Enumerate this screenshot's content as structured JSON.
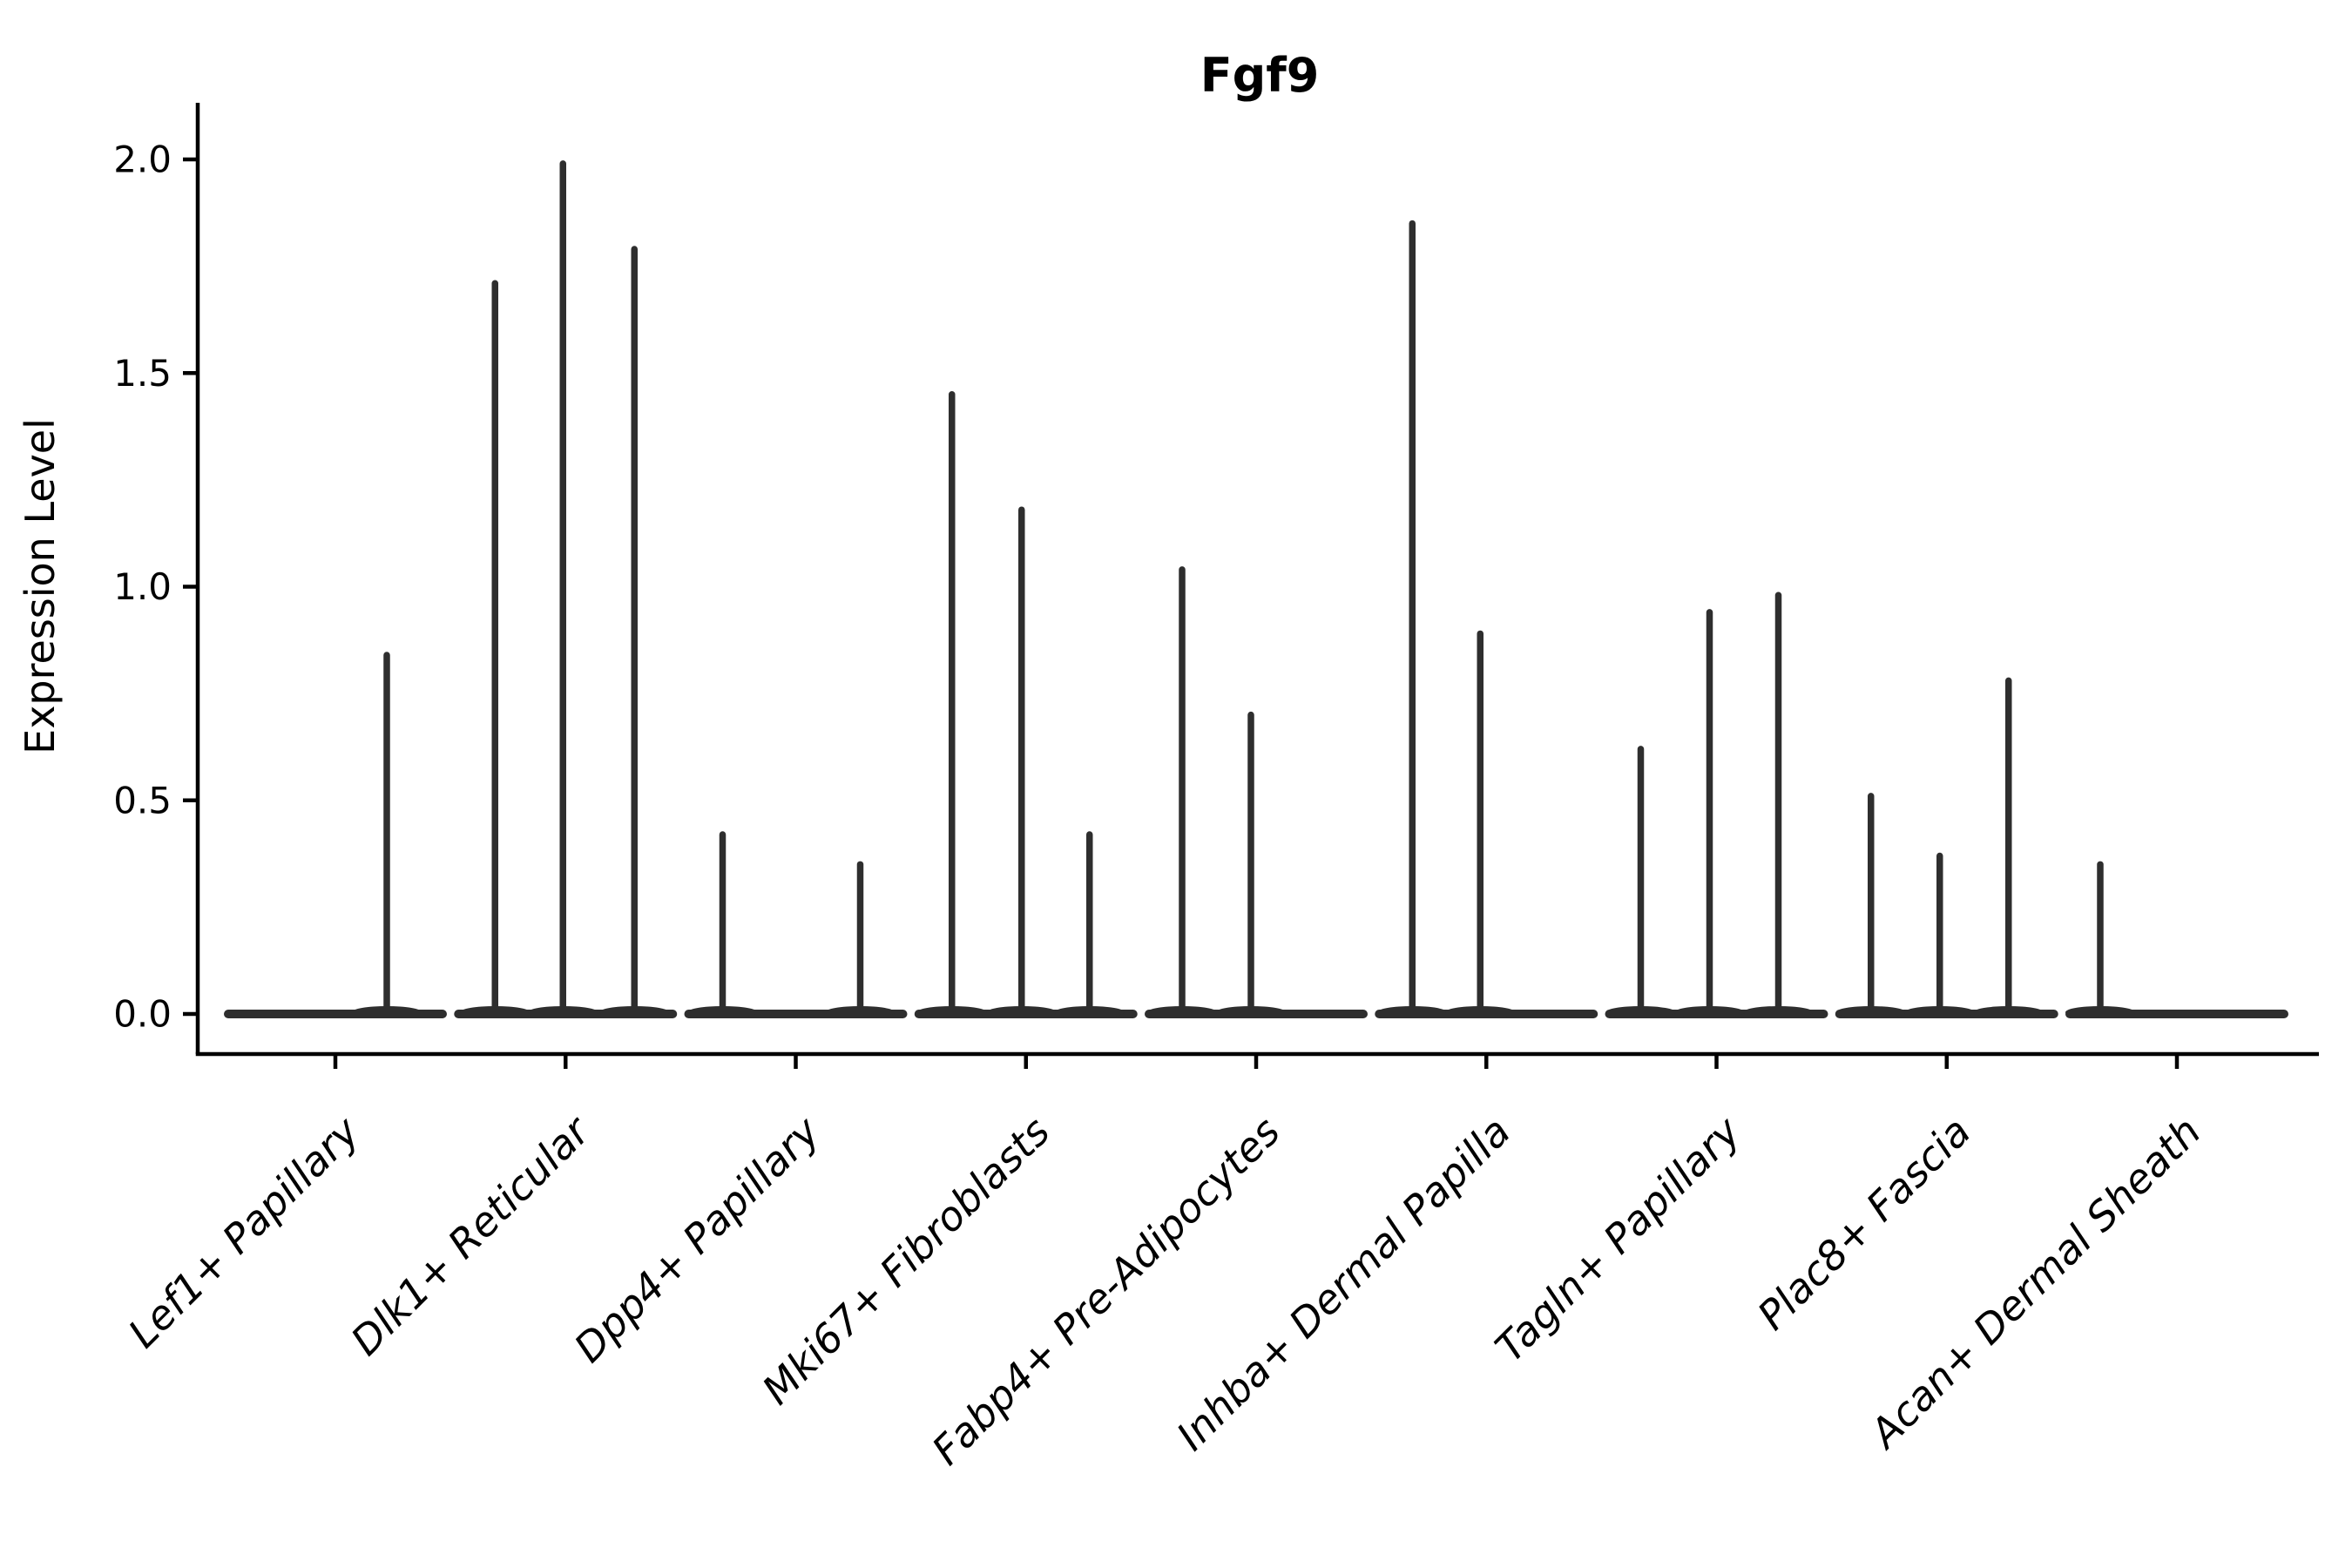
{
  "page": {
    "background": "#ffffff"
  },
  "chart_data": {
    "type": "violin",
    "title": "Fgf9",
    "ylabel": "Expression Level",
    "xlabel": "",
    "grid": false,
    "legend": null,
    "ink_color": "#000000",
    "violin_color": "#2e2e2e",
    "ylim": [
      0.0,
      2.05
    ],
    "yticks": [
      0.0,
      0.5,
      1.0,
      1.5,
      2.0
    ],
    "ytick_labels": [
      "0.0",
      "0.5",
      "1.0",
      "1.5",
      "2.0"
    ],
    "categories": [
      "Lef1+ Papillary",
      "Dlk1+ Reticular",
      "Dpp4+ Papillary",
      "Mki67+ Fibroblasts",
      "Fabp4+ Pre-Adipocytes",
      "Inhba+ Dermal Papilla",
      "Tagln+ Papillary",
      "Plac8+ Fascia",
      "Acan+ Dermal Sheath"
    ],
    "groups": [
      {
        "label": "Lef1+ Papillary",
        "peaks": [
          {
            "pos": 59,
            "value": 0.84
          }
        ]
      },
      {
        "label": "Dlk1+ Reticular",
        "peaks": [
          {
            "pos": -81,
            "value": 1.71
          },
          {
            "pos": -3,
            "value": 1.99
          },
          {
            "pos": 79,
            "value": 1.79
          }
        ]
      },
      {
        "label": "Dpp4+ Papillary",
        "peaks": [
          {
            "pos": -84,
            "value": 0.42
          },
          {
            "pos": 74,
            "value": 0.35
          }
        ]
      },
      {
        "label": "Mki67+ Fibroblasts",
        "peaks": [
          {
            "pos": -85,
            "value": 1.45
          },
          {
            "pos": -5,
            "value": 1.18
          },
          {
            "pos": 73,
            "value": 0.42
          }
        ]
      },
      {
        "label": "Fabp4+ Pre-Adipocytes",
        "peaks": [
          {
            "pos": -85,
            "value": 1.04
          },
          {
            "pos": -6,
            "value": 0.7
          }
        ]
      },
      {
        "label": "Inhba+ Dermal Papilla",
        "peaks": [
          {
            "pos": -85,
            "value": 1.85
          },
          {
            "pos": -7,
            "value": 0.89
          }
        ]
      },
      {
        "label": "Tagln+ Papillary",
        "peaks": [
          {
            "pos": -87,
            "value": 0.62
          },
          {
            "pos": -8,
            "value": 0.94
          },
          {
            "pos": 71,
            "value": 0.98
          }
        ]
      },
      {
        "label": "Plac8+ Fascia",
        "peaks": [
          {
            "pos": -87,
            "value": 0.51
          },
          {
            "pos": -8,
            "value": 0.37
          },
          {
            "pos": 71,
            "value": 0.78
          }
        ]
      },
      {
        "label": "Acan+ Dermal Sheath",
        "peaks": [
          {
            "pos": -88,
            "value": 0.35
          }
        ]
      }
    ]
  }
}
